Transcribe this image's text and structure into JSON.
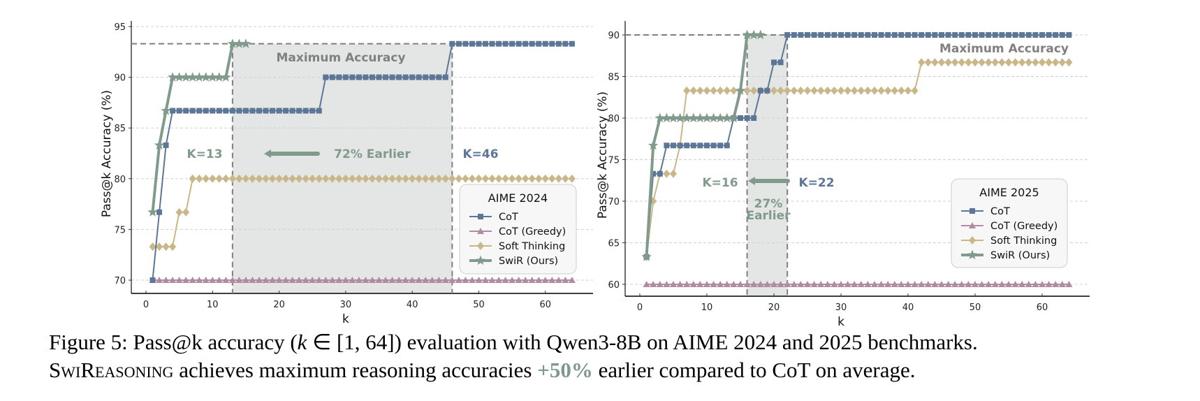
{
  "colors": {
    "cot": "#5b7696",
    "greedy": "#b08ba3",
    "soft": "#c9b789",
    "swir": "#809a8c",
    "maxline": "#7f7f7f",
    "shade": "#e3e6e5",
    "annot_gray": "#808080",
    "k_cot": "#5b7696",
    "k_swir": "#809a8c"
  },
  "chart_data": [
    {
      "type": "line",
      "legend_title": "AIME 2024",
      "legend_position": "lower-right",
      "xlabel": "k",
      "ylabel": "Pass@k Accuracy (%)",
      "xlim": [
        -2,
        68
      ],
      "ylim": [
        68,
        95
      ],
      "xticks": [
        0,
        10,
        20,
        30,
        40,
        50,
        60
      ],
      "yticks": [
        70,
        75,
        80,
        85,
        90,
        95
      ],
      "grid": "y-dashed",
      "max_accuracy": 93.3,
      "max_accuracy_label": "Maximum Accuracy",
      "shaded_region": [
        13,
        46
      ],
      "annotations": {
        "swir_k": "K=13",
        "cot_k": "K=46",
        "earlier": "72% Earlier"
      },
      "series": [
        {
          "name": "CoT",
          "key": "cot",
          "marker": "square",
          "x": [
            1,
            2,
            3,
            4,
            5,
            6,
            7,
            8,
            9,
            10,
            11,
            12,
            13,
            14,
            15,
            16,
            17,
            18,
            19,
            20,
            21,
            22,
            23,
            24,
            25,
            26,
            27,
            28,
            29,
            30,
            31,
            32,
            33,
            34,
            35,
            36,
            37,
            38,
            39,
            40,
            41,
            42,
            43,
            44,
            45,
            46,
            47,
            48,
            49,
            50,
            51,
            52,
            53,
            54,
            55,
            56,
            57,
            58,
            59,
            60,
            61,
            62,
            63,
            64
          ],
          "y": [
            70,
            76.7,
            83.3,
            86.7,
            86.7,
            86.7,
            86.7,
            86.7,
            86.7,
            86.7,
            86.7,
            86.7,
            86.7,
            86.7,
            86.7,
            86.7,
            86.7,
            86.7,
            86.7,
            86.7,
            86.7,
            86.7,
            86.7,
            86.7,
            86.7,
            86.7,
            90,
            90,
            90,
            90,
            90,
            90,
            90,
            90,
            90,
            90,
            90,
            90,
            90,
            90,
            90,
            90,
            90,
            90,
            90,
            93.3,
            93.3,
            93.3,
            93.3,
            93.3,
            93.3,
            93.3,
            93.3,
            93.3,
            93.3,
            93.3,
            93.3,
            93.3,
            93.3,
            93.3,
            93.3,
            93.3,
            93.3,
            93.3
          ]
        },
        {
          "name": "CoT (Greedy)",
          "key": "greedy",
          "marker": "triangle",
          "x": [
            1,
            2,
            3,
            4,
            5,
            6,
            7,
            8,
            9,
            10,
            11,
            12,
            13,
            14,
            15,
            16,
            17,
            18,
            19,
            20,
            21,
            22,
            23,
            24,
            25,
            26,
            27,
            28,
            29,
            30,
            31,
            32,
            33,
            34,
            35,
            36,
            37,
            38,
            39,
            40,
            41,
            42,
            43,
            44,
            45,
            46,
            47,
            48,
            49,
            50,
            51,
            52,
            53,
            54,
            55,
            56,
            57,
            58,
            59,
            60,
            61,
            62,
            63,
            64
          ],
          "y": [
            70,
            70,
            70,
            70,
            70,
            70,
            70,
            70,
            70,
            70,
            70,
            70,
            70,
            70,
            70,
            70,
            70,
            70,
            70,
            70,
            70,
            70,
            70,
            70,
            70,
            70,
            70,
            70,
            70,
            70,
            70,
            70,
            70,
            70,
            70,
            70,
            70,
            70,
            70,
            70,
            70,
            70,
            70,
            70,
            70,
            70,
            70,
            70,
            70,
            70,
            70,
            70,
            70,
            70,
            70,
            70,
            70,
            70,
            70,
            70,
            70,
            70,
            70,
            70
          ]
        },
        {
          "name": "Soft Thinking",
          "key": "soft",
          "marker": "diamond",
          "x": [
            1,
            2,
            3,
            4,
            5,
            6,
            7,
            8,
            9,
            10,
            11,
            12,
            13,
            14,
            15,
            16,
            17,
            18,
            19,
            20,
            21,
            22,
            23,
            24,
            25,
            26,
            27,
            28,
            29,
            30,
            31,
            32,
            33,
            34,
            35,
            36,
            37,
            38,
            39,
            40,
            41,
            42,
            43,
            44,
            45,
            46,
            47,
            48,
            49,
            50,
            51,
            52,
            53,
            54,
            55,
            56,
            57,
            58,
            59,
            60,
            61,
            62,
            63,
            64
          ],
          "y": [
            73.3,
            73.3,
            73.3,
            73.3,
            76.7,
            76.7,
            80,
            80,
            80,
            80,
            80,
            80,
            80,
            80,
            80,
            80,
            80,
            80,
            80,
            80,
            80,
            80,
            80,
            80,
            80,
            80,
            80,
            80,
            80,
            80,
            80,
            80,
            80,
            80,
            80,
            80,
            80,
            80,
            80,
            80,
            80,
            80,
            80,
            80,
            80,
            80,
            80,
            80,
            80,
            80,
            80,
            80,
            80,
            80,
            80,
            80,
            80,
            80,
            80,
            80,
            80,
            80,
            80,
            80
          ]
        },
        {
          "name": "SwiR (Ours)",
          "key": "swir",
          "marker": "star",
          "x": [
            1,
            2,
            3,
            4,
            5,
            6,
            7,
            8,
            9,
            10,
            11,
            12,
            13,
            14,
            15
          ],
          "y": [
            76.7,
            83.3,
            86.7,
            90,
            90,
            90,
            90,
            90,
            90,
            90,
            90,
            90,
            93.3,
            93.3,
            93.3
          ]
        }
      ]
    },
    {
      "type": "line",
      "legend_title": "AIME 2025",
      "legend_position": "center-right",
      "xlabel": "k",
      "ylabel": "Pass@k Accuracy (%)",
      "xlim": [
        -2,
        68
      ],
      "ylim": [
        58.6,
        91.5
      ],
      "xticks": [
        0,
        10,
        20,
        30,
        40,
        50,
        60
      ],
      "yticks": [
        60,
        65,
        70,
        75,
        80,
        85,
        90
      ],
      "grid": "y-dashed",
      "max_accuracy": 90,
      "max_accuracy_label": "Maximum Accuracy",
      "shaded_region": [
        16,
        22
      ],
      "annotations": {
        "swir_k": "K=16",
        "cot_k": "K=22",
        "earlier_line1": "27%",
        "earlier_line2": "Earlier"
      },
      "series": [
        {
          "name": "CoT",
          "key": "cot",
          "marker": "square",
          "x": [
            1,
            2,
            3,
            4,
            5,
            6,
            7,
            8,
            9,
            10,
            11,
            12,
            13,
            14,
            15,
            16,
            17,
            18,
            19,
            20,
            21,
            22,
            23,
            24,
            25,
            26,
            27,
            28,
            29,
            30,
            31,
            32,
            33,
            34,
            35,
            36,
            37,
            38,
            39,
            40,
            41,
            42,
            43,
            44,
            45,
            46,
            47,
            48,
            49,
            50,
            51,
            52,
            53,
            54,
            55,
            56,
            57,
            58,
            59,
            60,
            61,
            62,
            63,
            64
          ],
          "y": [
            63.3,
            73.3,
            73.3,
            76.7,
            76.7,
            76.7,
            76.7,
            76.7,
            76.7,
            76.7,
            76.7,
            76.7,
            76.7,
            80,
            80,
            80,
            80,
            83.3,
            83.3,
            86.7,
            86.7,
            90,
            90,
            90,
            90,
            90,
            90,
            90,
            90,
            90,
            90,
            90,
            90,
            90,
            90,
            90,
            90,
            90,
            90,
            90,
            90,
            90,
            90,
            90,
            90,
            90,
            90,
            90,
            90,
            90,
            90,
            90,
            90,
            90,
            90,
            90,
            90,
            90,
            90,
            90,
            90,
            90,
            90,
            90
          ]
        },
        {
          "name": "CoT (Greedy)",
          "key": "greedy",
          "marker": "triangle",
          "x": [
            1,
            2,
            3,
            4,
            5,
            6,
            7,
            8,
            9,
            10,
            11,
            12,
            13,
            14,
            15,
            16,
            17,
            18,
            19,
            20,
            21,
            22,
            23,
            24,
            25,
            26,
            27,
            28,
            29,
            30,
            31,
            32,
            33,
            34,
            35,
            36,
            37,
            38,
            39,
            40,
            41,
            42,
            43,
            44,
            45,
            46,
            47,
            48,
            49,
            50,
            51,
            52,
            53,
            54,
            55,
            56,
            57,
            58,
            59,
            60,
            61,
            62,
            63,
            64
          ],
          "y": [
            60,
            60,
            60,
            60,
            60,
            60,
            60,
            60,
            60,
            60,
            60,
            60,
            60,
            60,
            60,
            60,
            60,
            60,
            60,
            60,
            60,
            60,
            60,
            60,
            60,
            60,
            60,
            60,
            60,
            60,
            60,
            60,
            60,
            60,
            60,
            60,
            60,
            60,
            60,
            60,
            60,
            60,
            60,
            60,
            60,
            60,
            60,
            60,
            60,
            60,
            60,
            60,
            60,
            60,
            60,
            60,
            60,
            60,
            60,
            60,
            60,
            60,
            60,
            60
          ]
        },
        {
          "name": "Soft Thinking",
          "key": "soft",
          "marker": "diamond",
          "x": [
            1,
            2,
            3,
            4,
            5,
            6,
            7,
            8,
            9,
            10,
            11,
            12,
            13,
            14,
            15,
            16,
            17,
            18,
            19,
            20,
            21,
            22,
            23,
            24,
            25,
            26,
            27,
            28,
            29,
            30,
            31,
            32,
            33,
            34,
            35,
            36,
            37,
            38,
            39,
            40,
            41,
            42,
            43,
            44,
            45,
            46,
            47,
            48,
            49,
            50,
            51,
            52,
            53,
            54,
            55,
            56,
            57,
            58,
            59,
            60,
            61,
            62,
            63,
            64
          ],
          "y": [
            63.3,
            70,
            73.3,
            73.3,
            73.3,
            76.7,
            83.3,
            83.3,
            83.3,
            83.3,
            83.3,
            83.3,
            83.3,
            83.3,
            83.3,
            83.3,
            83.3,
            83.3,
            83.3,
            83.3,
            83.3,
            83.3,
            83.3,
            83.3,
            83.3,
            83.3,
            83.3,
            83.3,
            83.3,
            83.3,
            83.3,
            83.3,
            83.3,
            83.3,
            83.3,
            83.3,
            83.3,
            83.3,
            83.3,
            83.3,
            83.3,
            86.7,
            86.7,
            86.7,
            86.7,
            86.7,
            86.7,
            86.7,
            86.7,
            86.7,
            86.7,
            86.7,
            86.7,
            86.7,
            86.7,
            86.7,
            86.7,
            86.7,
            86.7,
            86.7,
            86.7,
            86.7,
            86.7,
            86.7
          ]
        },
        {
          "name": "SwiR (Ours)",
          "key": "swir",
          "marker": "star",
          "x": [
            1,
            2,
            3,
            4,
            5,
            6,
            7,
            8,
            9,
            10,
            11,
            12,
            13,
            14,
            15,
            16,
            17,
            18
          ],
          "y": [
            63.3,
            76.7,
            80,
            80,
            80,
            80,
            80,
            80,
            80,
            80,
            80,
            80,
            80,
            80,
            83.3,
            90,
            90,
            90
          ]
        }
      ]
    }
  ],
  "caption": {
    "line1_prefix": "Figure 5: Pass@k accuracy (",
    "line1_math": "k",
    "line1_math_rest": " ∈ [1, 64]",
    "line1_suffix": ") evaluation with Qwen3-8B on AIME 2024 and 2025 benchmarks.",
    "line2_method": "SwiReasoning",
    "line2_mid": " achieves maximum reasoning accuracies ",
    "line2_highlight": "+50%",
    "line2_suffix": " earlier compared to CoT on average."
  }
}
